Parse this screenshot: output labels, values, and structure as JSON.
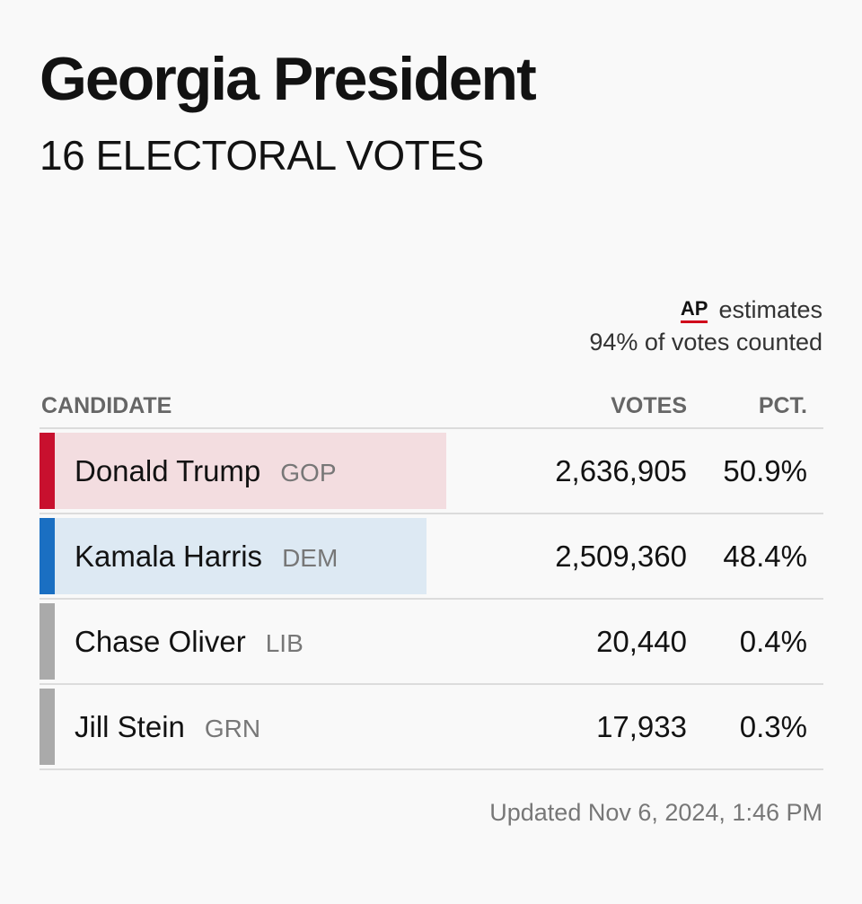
{
  "header": {
    "title": "Georgia President",
    "subtitle": "16 ELECTORAL VOTES"
  },
  "source": {
    "logo": "AP",
    "estimates_label": "estimates",
    "counted": "94% of votes counted"
  },
  "table": {
    "columns": {
      "candidate": "CANDIDATE",
      "votes": "VOTES",
      "pct": "PCT."
    },
    "rows": [
      {
        "name": "Donald Trump",
        "party": "GOP",
        "votes": "2,636,905",
        "pct": "50.9%",
        "share": 50.9,
        "color": "#c8102e",
        "fill": "#f3dde0"
      },
      {
        "name": "Kamala Harris",
        "party": "DEM",
        "votes": "2,509,360",
        "pct": "48.4%",
        "share": 48.4,
        "color": "#1a6fc2",
        "fill": "#dde9f3"
      },
      {
        "name": "Chase Oliver",
        "party": "LIB",
        "votes": "20,440",
        "pct": "0.4%",
        "share": 0.4,
        "color": "#aaaaaa",
        "fill": "#f9f9f9"
      },
      {
        "name": "Jill Stein",
        "party": "GRN",
        "votes": "17,933",
        "pct": "0.3%",
        "share": 0.3,
        "color": "#aaaaaa",
        "fill": "#f9f9f9"
      }
    ]
  },
  "footer": {
    "updated": "Updated Nov 6, 2024, 1:46 PM"
  }
}
